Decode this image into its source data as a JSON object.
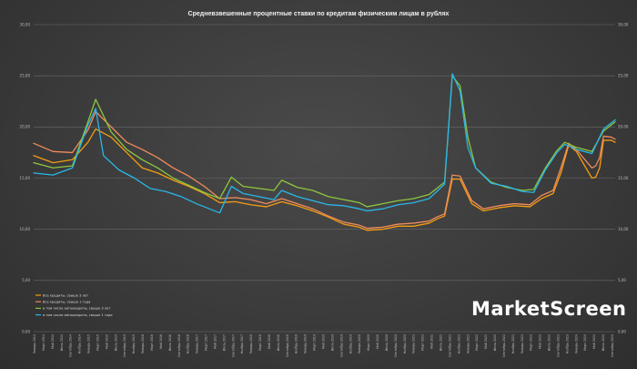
{
  "chart_data": {
    "type": "line",
    "title": "Средневзвешенные процентные ставки по кредитам физическим лицам в рублях",
    "xlabel": "",
    "ylabel": "",
    "ylim": [
      0,
      30
    ],
    "yticks": [
      "0,00",
      "5,00",
      "10,00",
      "15,00",
      "20,00",
      "25,00",
      "30,00"
    ],
    "grid": true,
    "legend_position": "bottom-left",
    "watermark": "MarketScreen",
    "x_start": "2014-01",
    "x_end": "2024-09",
    "x_labels": [
      "Январь 2014",
      "Март 2014",
      "Май 2014",
      "Июль 2014",
      "Сентябрь 2014",
      "Ноябрь 2014",
      "Январь 2015",
      "Март 2015",
      "Май 2015",
      "Июль 2015",
      "Сентябрь 2015",
      "Ноябрь 2015",
      "Январь 2016",
      "Март 2016",
      "Май 2016",
      "Июль 2016",
      "Сентябрь 2016",
      "Ноябрь 2016",
      "Январь 2017",
      "Март 2017",
      "Май 2017",
      "Июль 2017",
      "Сентябрь 2017",
      "Ноябрь 2017",
      "Январь 2018",
      "Март 2018",
      "Май 2018",
      "Июль 2018",
      "Сентябрь 2018",
      "Ноябрь 2018",
      "Январь 2019",
      "Март 2019",
      "Май 2019",
      "Июль 2019",
      "Сентябрь 2019",
      "Ноябрь 2019",
      "Январь 2020",
      "Март 2020",
      "Май 2020",
      "Июль 2020",
      "Сентябрь 2020",
      "Ноябрь 2020",
      "Январь 2021",
      "Март 2021",
      "Май 2021",
      "Июль 2021",
      "Сентябрь 2021",
      "Ноябрь 2021",
      "Январь 2022",
      "Март 2022",
      "Май 2022",
      "Июль 2022",
      "Сентябрь 2022",
      "Ноябрь 2022",
      "Январь 2023",
      "Март 2023",
      "Май 2023",
      "Июль 2023",
      "Сентябрь 2023",
      "Ноябрь 2023",
      "Январь 2024",
      "Март 2024",
      "Май 2024",
      "Июль 2024",
      "Сентябрь 2024"
    ],
    "series": [
      {
        "name": "Все кредиты, свыше 3 лет",
        "color": "#f39c12",
        "points": [
          [
            0,
            17.2
          ],
          [
            5,
            16.5
          ],
          [
            10,
            16.8
          ],
          [
            14,
            18.5
          ],
          [
            16,
            19.8
          ],
          [
            20,
            19.0
          ],
          [
            24,
            17.5
          ],
          [
            28,
            16.0
          ],
          [
            32,
            15.5
          ],
          [
            36,
            14.8
          ],
          [
            40,
            14.2
          ],
          [
            44,
            13.5
          ],
          [
            48,
            12.6
          ],
          [
            52,
            12.7
          ],
          [
            56,
            12.4
          ],
          [
            60,
            12.2
          ],
          [
            64,
            12.7
          ],
          [
            68,
            12.3
          ],
          [
            72,
            11.8
          ],
          [
            76,
            11.2
          ],
          [
            80,
            10.5
          ],
          [
            84,
            10.2
          ],
          [
            86,
            9.9
          ],
          [
            90,
            10.0
          ],
          [
            94,
            10.3
          ],
          [
            98,
            10.3
          ],
          [
            102,
            10.6
          ],
          [
            104,
            11.0
          ],
          [
            106,
            11.3
          ],
          [
            108,
            14.9
          ],
          [
            110,
            14.9
          ],
          [
            113,
            12.5
          ],
          [
            116,
            11.8
          ],
          [
            120,
            12.1
          ],
          [
            124,
            12.3
          ],
          [
            128,
            12.2
          ],
          [
            131,
            13.0
          ],
          [
            134,
            13.5
          ],
          [
            136,
            15.5
          ],
          [
            138,
            18.2
          ],
          [
            140,
            17.6
          ],
          [
            144,
            15.0
          ],
          [
            145,
            15.1
          ],
          [
            146,
            16.0
          ],
          [
            147,
            18.7
          ],
          [
            149,
            18.7
          ],
          [
            150,
            18.5
          ]
        ]
      },
      {
        "name": "Все кредиты, свыше 1 года",
        "color": "#f08c5c",
        "points": [
          [
            0,
            18.4
          ],
          [
            5,
            17.6
          ],
          [
            10,
            17.5
          ],
          [
            14,
            19.7
          ],
          [
            16,
            21.5
          ],
          [
            20,
            20.0
          ],
          [
            24,
            18.5
          ],
          [
            28,
            17.8
          ],
          [
            32,
            17.0
          ],
          [
            36,
            16.0
          ],
          [
            40,
            15.2
          ],
          [
            44,
            14.2
          ],
          [
            48,
            13.0
          ],
          [
            52,
            13.1
          ],
          [
            56,
            12.9
          ],
          [
            60,
            12.5
          ],
          [
            64,
            13.0
          ],
          [
            68,
            12.5
          ],
          [
            72,
            12.0
          ],
          [
            76,
            11.3
          ],
          [
            80,
            10.7
          ],
          [
            84,
            10.4
          ],
          [
            86,
            10.1
          ],
          [
            90,
            10.2
          ],
          [
            94,
            10.5
          ],
          [
            98,
            10.6
          ],
          [
            102,
            10.8
          ],
          [
            104,
            11.2
          ],
          [
            106,
            11.5
          ],
          [
            108,
            15.3
          ],
          [
            110,
            15.2
          ],
          [
            113,
            12.8
          ],
          [
            116,
            12.0
          ],
          [
            120,
            12.3
          ],
          [
            124,
            12.5
          ],
          [
            128,
            12.4
          ],
          [
            131,
            13.3
          ],
          [
            134,
            13.8
          ],
          [
            136,
            16.0
          ],
          [
            138,
            18.4
          ],
          [
            140,
            17.8
          ],
          [
            144,
            16.0
          ],
          [
            145,
            16.2
          ],
          [
            146,
            17.0
          ],
          [
            147,
            19.1
          ],
          [
            149,
            19.0
          ],
          [
            150,
            18.8
          ]
        ]
      },
      {
        "name": "в том числе автокредиты, свыше 3 лет",
        "color": "#8cc63f",
        "points": [
          [
            0,
            16.5
          ],
          [
            5,
            16.0
          ],
          [
            10,
            16.2
          ],
          [
            14,
            20.5
          ],
          [
            16,
            22.7
          ],
          [
            20,
            19.5
          ],
          [
            24,
            17.8
          ],
          [
            28,
            16.8
          ],
          [
            32,
            16.0
          ],
          [
            36,
            15.0
          ],
          [
            40,
            14.3
          ],
          [
            44,
            13.6
          ],
          [
            48,
            13.0
          ],
          [
            51,
            15.1
          ],
          [
            54,
            14.2
          ],
          [
            58,
            14.0
          ],
          [
            62,
            13.8
          ],
          [
            64,
            14.8
          ],
          [
            68,
            14.1
          ],
          [
            72,
            13.8
          ],
          [
            76,
            13.2
          ],
          [
            80,
            12.9
          ],
          [
            84,
            12.6
          ],
          [
            86,
            12.2
          ],
          [
            90,
            12.5
          ],
          [
            94,
            12.8
          ],
          [
            98,
            13.0
          ],
          [
            102,
            13.4
          ],
          [
            106,
            14.6
          ],
          [
            108,
            25.0
          ],
          [
            110,
            24.0
          ],
          [
            112,
            19.0
          ],
          [
            114,
            16.0
          ],
          [
            118,
            14.6
          ],
          [
            122,
            14.1
          ],
          [
            126,
            13.8
          ],
          [
            129,
            13.9
          ],
          [
            132,
            16.0
          ],
          [
            135,
            17.7
          ],
          [
            137,
            18.5
          ],
          [
            140,
            18.0
          ],
          [
            144,
            17.6
          ],
          [
            147,
            19.6
          ],
          [
            150,
            20.5
          ]
        ]
      },
      {
        "name": "в том числе автокредиты, свыше 1 года",
        "color": "#29b6e8",
        "points": [
          [
            0,
            15.5
          ],
          [
            5,
            15.3
          ],
          [
            10,
            16.0
          ],
          [
            14,
            20.2
          ],
          [
            16,
            21.8
          ],
          [
            18,
            17.2
          ],
          [
            22,
            15.8
          ],
          [
            26,
            15.0
          ],
          [
            30,
            14.0
          ],
          [
            34,
            13.7
          ],
          [
            38,
            13.2
          ],
          [
            42,
            12.5
          ],
          [
            48,
            11.6
          ],
          [
            51,
            14.2
          ],
          [
            54,
            13.5
          ],
          [
            58,
            13.2
          ],
          [
            62,
            12.9
          ],
          [
            64,
            13.8
          ],
          [
            68,
            13.2
          ],
          [
            72,
            12.8
          ],
          [
            76,
            12.4
          ],
          [
            80,
            12.3
          ],
          [
            84,
            12.0
          ],
          [
            86,
            11.8
          ],
          [
            90,
            12.0
          ],
          [
            94,
            12.4
          ],
          [
            98,
            12.6
          ],
          [
            102,
            13.0
          ],
          [
            106,
            14.4
          ],
          [
            108,
            25.2
          ],
          [
            110,
            23.5
          ],
          [
            112,
            18.0
          ],
          [
            114,
            16.0
          ],
          [
            118,
            14.5
          ],
          [
            122,
            14.2
          ],
          [
            126,
            13.7
          ],
          [
            129,
            13.6
          ],
          [
            132,
            15.8
          ],
          [
            135,
            17.5
          ],
          [
            137,
            18.3
          ],
          [
            140,
            17.8
          ],
          [
            144,
            17.4
          ],
          [
            147,
            19.8
          ],
          [
            150,
            20.7
          ]
        ]
      }
    ]
  }
}
